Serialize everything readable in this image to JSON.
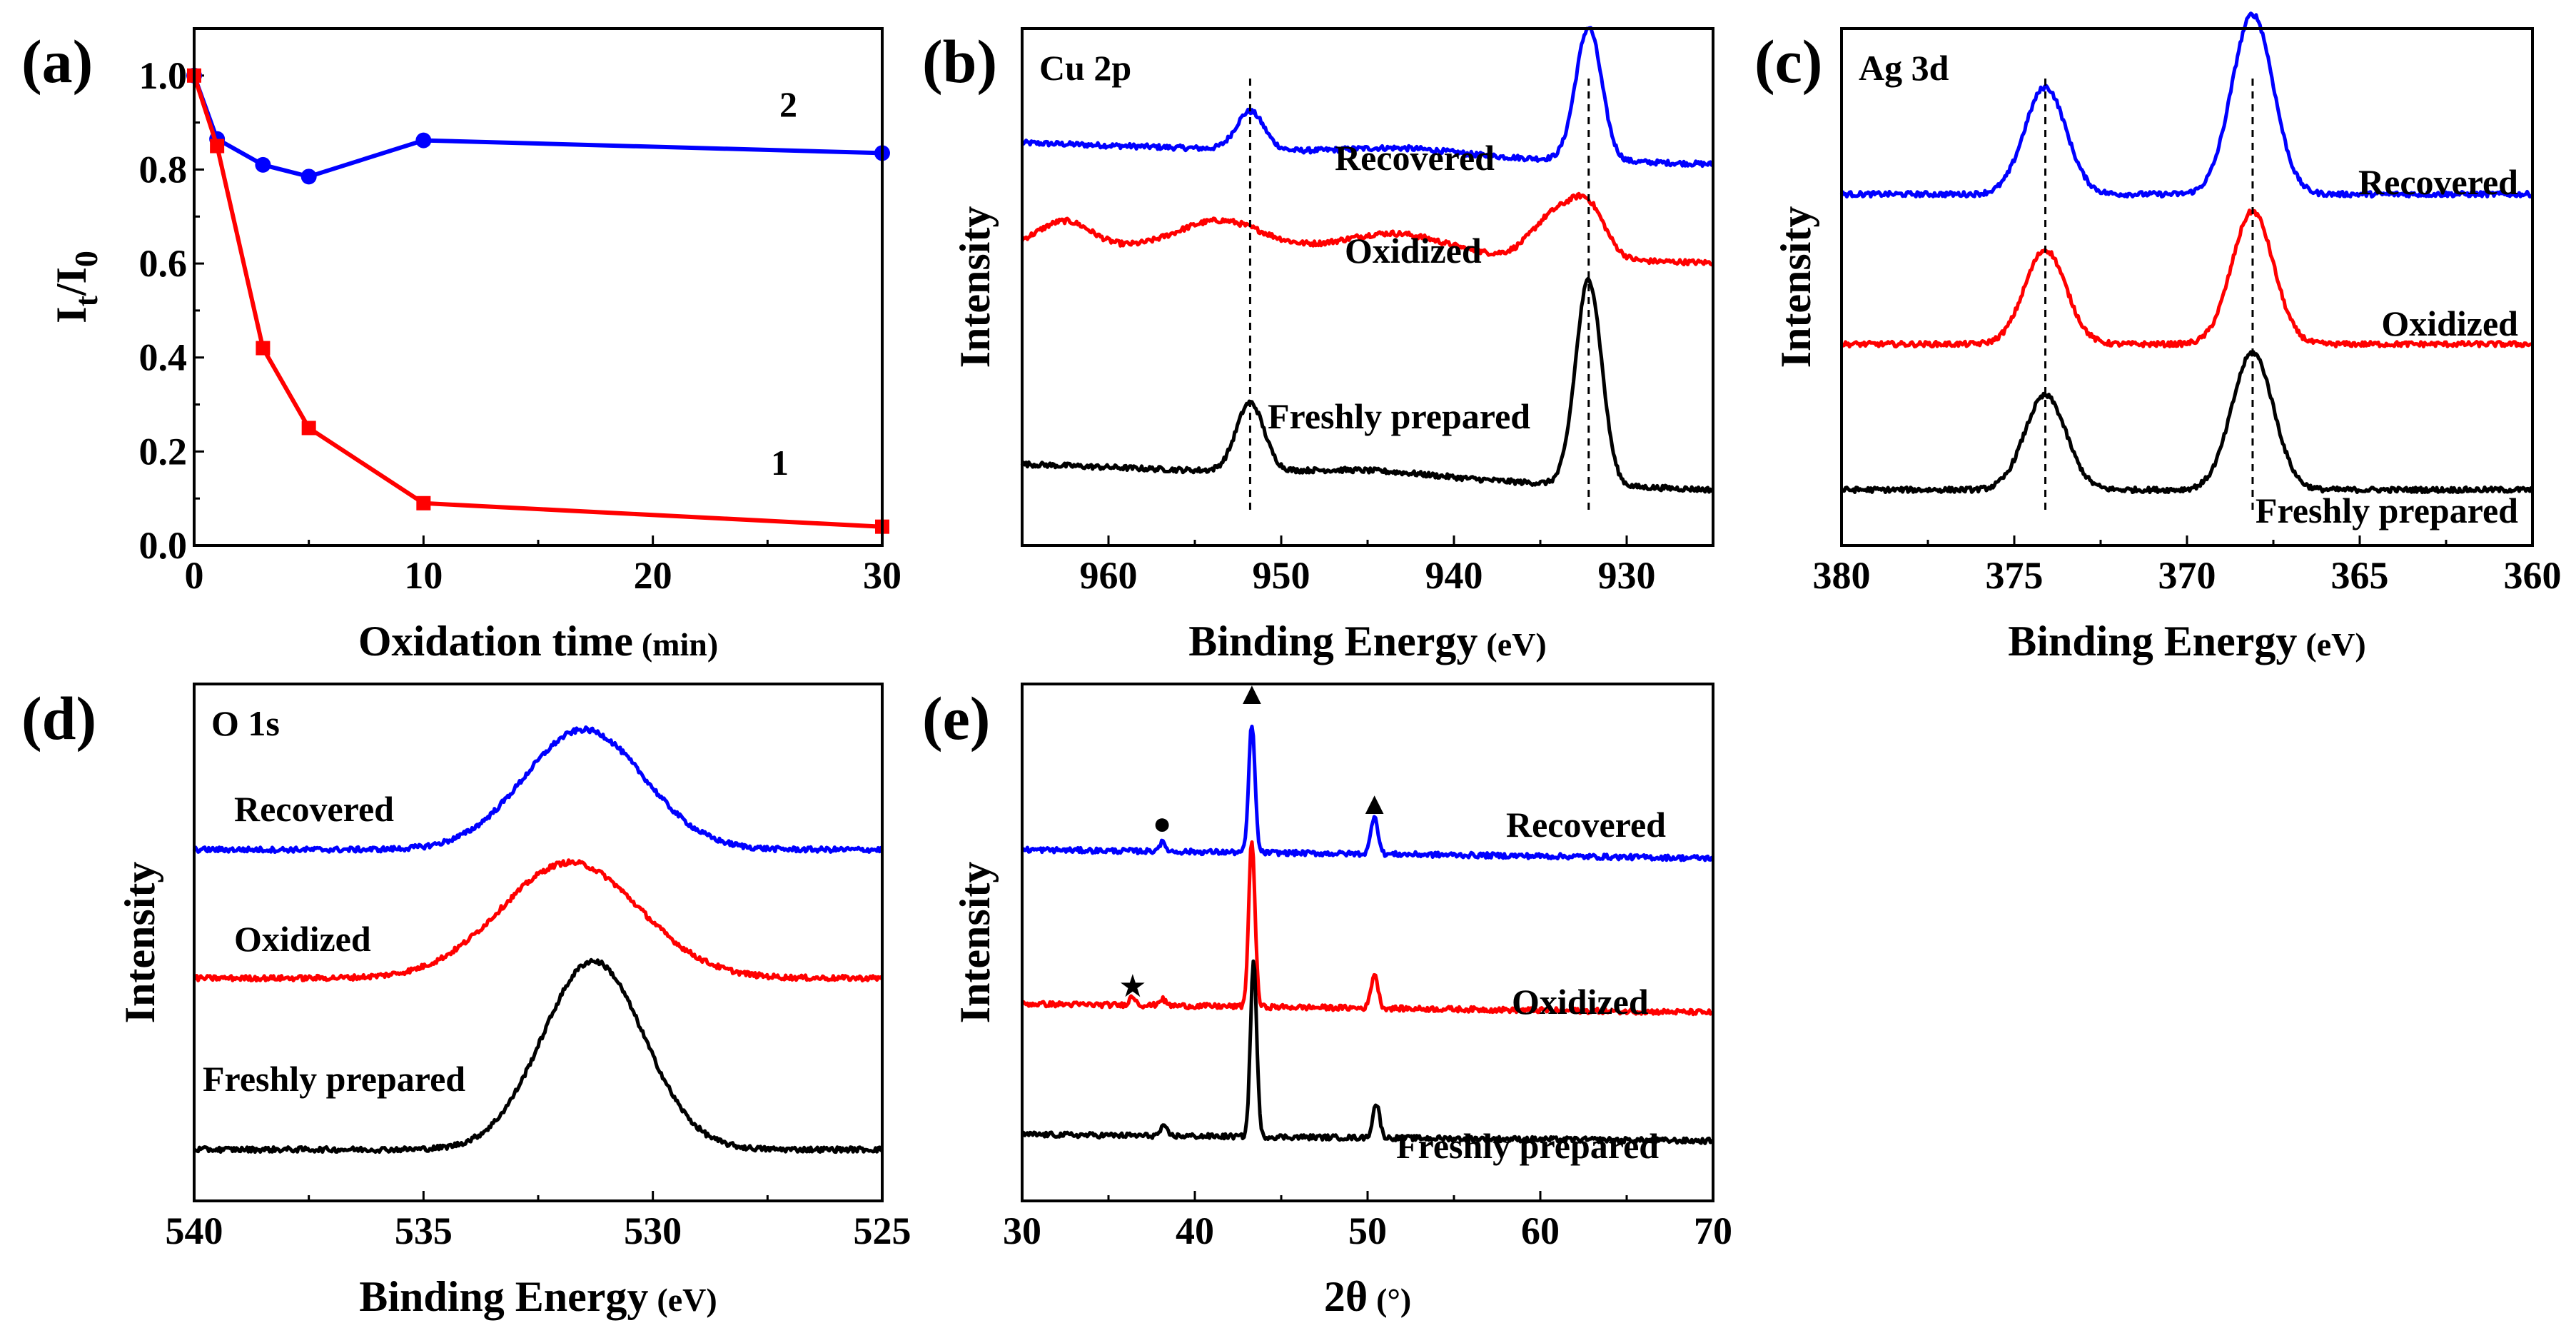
{
  "colors": {
    "recovered": "#0000ff",
    "oxidized": "#ff0000",
    "fresh": "#000000"
  },
  "chart_data": [
    {
      "id": "a",
      "panel_label": "(a)",
      "type": "line",
      "title": "",
      "xlabel": "Oxidation time",
      "xlabel_unit": "(min)",
      "ylabel": "I",
      "ylabel_sub1": "t",
      "ylabel_mid": "/I",
      "ylabel_sub2": "0",
      "xlim": [
        0,
        30
      ],
      "ylim": [
        0,
        1.1
      ],
      "xticks": [
        0,
        10,
        20,
        30
      ],
      "yticks": [
        "0.0",
        "0.2",
        "0.4",
        "0.6",
        "0.8",
        "1.0"
      ],
      "series": [
        {
          "name": "2",
          "color": "#0000ff",
          "marker": "circle",
          "x": [
            0,
            1,
            3,
            5,
            10,
            30
          ],
          "y": [
            1.0,
            0.865,
            0.81,
            0.785,
            0.862,
            0.835
          ]
        },
        {
          "name": "1",
          "color": "#ff0000",
          "marker": "square",
          "x": [
            0,
            1,
            3,
            5,
            10,
            30
          ],
          "y": [
            1.0,
            0.85,
            0.42,
            0.25,
            0.09,
            0.04
          ]
        }
      ]
    },
    {
      "id": "b",
      "panel_label": "(b)",
      "type": "line",
      "title": "Cu 2p",
      "xlabel": "Binding Energy",
      "xlabel_unit": "(eV)",
      "ylabel": "Intensity",
      "xlim": [
        965,
        925
      ],
      "xticks": [
        960,
        950,
        940,
        930
      ],
      "reference_lines": [
        951.8,
        932.2
      ],
      "series": [
        {
          "name": "Recovered",
          "color": "#0000ff",
          "baseline": 0.79,
          "peaks": [
            [
              951.8,
              0.09,
              0.8
            ],
            [
              932.2,
              0.31,
              0.75
            ],
            [
              943,
              0.015,
              3
            ]
          ],
          "tail_drop": 0.05
        },
        {
          "name": "Oxidized",
          "color": "#ff0000",
          "baseline": 0.56,
          "peaks": [
            [
              962.5,
              0.06,
              1.5
            ],
            [
              953.5,
              0.07,
              2.5
            ],
            [
              943.5,
              0.05,
              3
            ],
            [
              934.2,
              0.1,
              1.3
            ],
            [
              932.2,
              0.11,
              1.0
            ]
          ],
          "tail_drop": 0.04
        },
        {
          "name": "Freshly prepared",
          "color": "#000000",
          "baseline": 0.03,
          "peaks": [
            [
              951.8,
              0.16,
              0.8
            ],
            [
              932.2,
              0.48,
              0.75
            ],
            [
              945,
              0.015,
              4
            ]
          ],
          "tail_drop": 0.06
        }
      ]
    },
    {
      "id": "c",
      "panel_label": "(c)",
      "type": "line",
      "title": "Ag 3d",
      "xlabel": "Binding Energy",
      "xlabel_unit": "(eV)",
      "ylabel": "Intensity",
      "xlim": [
        380,
        360
      ],
      "xticks": [
        380,
        375,
        370,
        365,
        360
      ],
      "reference_lines": [
        374.1,
        368.1
      ],
      "series": [
        {
          "name": "Recovered",
          "color": "#0000ff",
          "baseline": 0.72,
          "peaks": [
            [
              374.1,
              0.25,
              0.6
            ],
            [
              368.1,
              0.42,
              0.6
            ]
          ],
          "tail_drop": 0.0
        },
        {
          "name": "Oxidized",
          "color": "#ff0000",
          "baseline": 0.37,
          "peaks": [
            [
              374.1,
              0.22,
              0.6
            ],
            [
              368.1,
              0.31,
              0.6
            ]
          ],
          "tail_drop": 0.0
        },
        {
          "name": "Freshly prepared",
          "color": "#000000",
          "baseline": 0.03,
          "peaks": [
            [
              374.1,
              0.22,
              0.6
            ],
            [
              368.1,
              0.32,
              0.6
            ]
          ],
          "tail_drop": 0.0
        }
      ]
    },
    {
      "id": "d",
      "panel_label": "(d)",
      "type": "line",
      "title": "O 1s",
      "xlabel": "Binding Energy",
      "xlabel_unit": "(eV)",
      "ylabel": "Intensity",
      "xlim": [
        540,
        525
      ],
      "xticks": [
        540,
        535,
        530,
        525
      ],
      "series": [
        {
          "name": "Recovered",
          "color": "#0000ff",
          "baseline": 0.72,
          "peaks": [
            [
              531.5,
              0.28,
              1.3
            ]
          ],
          "tail_drop": 0.0
        },
        {
          "name": "Oxidized",
          "color": "#ff0000",
          "baseline": 0.42,
          "peaks": [
            [
              531.8,
              0.27,
              1.5
            ]
          ],
          "tail_drop": 0.0
        },
        {
          "name": "Freshly prepared",
          "color": "#000000",
          "baseline": 0.02,
          "peaks": [
            [
              531.3,
              0.44,
              1.1
            ]
          ],
          "tail_drop": 0.0
        }
      ]
    },
    {
      "id": "e",
      "panel_label": "(e)",
      "type": "line",
      "title": "",
      "xlabel": "2θ",
      "xlabel_unit": "(°)",
      "ylabel": "Intensity",
      "xlim": [
        30,
        70
      ],
      "xticks": [
        30,
        40,
        50,
        60,
        70
      ],
      "peak_markers": [
        {
          "symbol": "▲",
          "x": 43.3
        },
        {
          "symbol": "▲",
          "x": 50.4
        },
        {
          "symbol": "●",
          "x": 38.1
        },
        {
          "symbol": "★",
          "x": 36.4
        }
      ],
      "series": [
        {
          "name": "Recovered",
          "color": "#0000ff",
          "baseline": 0.7,
          "peaks": [
            [
              43.3,
              0.3,
              0.18
            ],
            [
              50.4,
              0.09,
              0.2
            ],
            [
              38.1,
              0.02,
              0.2
            ]
          ],
          "tail_drop": 0.02
        },
        {
          "name": "Oxidized",
          "color": "#ff0000",
          "baseline": 0.34,
          "peaks": [
            [
              43.3,
              0.39,
              0.18
            ],
            [
              50.4,
              0.08,
              0.2
            ],
            [
              36.4,
              0.02,
              0.2
            ],
            [
              38.1,
              0.015,
              0.2
            ]
          ],
          "tail_drop": 0.02
        },
        {
          "name": "Freshly prepared",
          "color": "#000000",
          "baseline": 0.04,
          "peaks": [
            [
              43.4,
              0.41,
              0.18
            ],
            [
              50.5,
              0.08,
              0.2
            ],
            [
              38.2,
              0.02,
              0.2
            ]
          ],
          "tail_drop": 0.015
        }
      ]
    }
  ]
}
